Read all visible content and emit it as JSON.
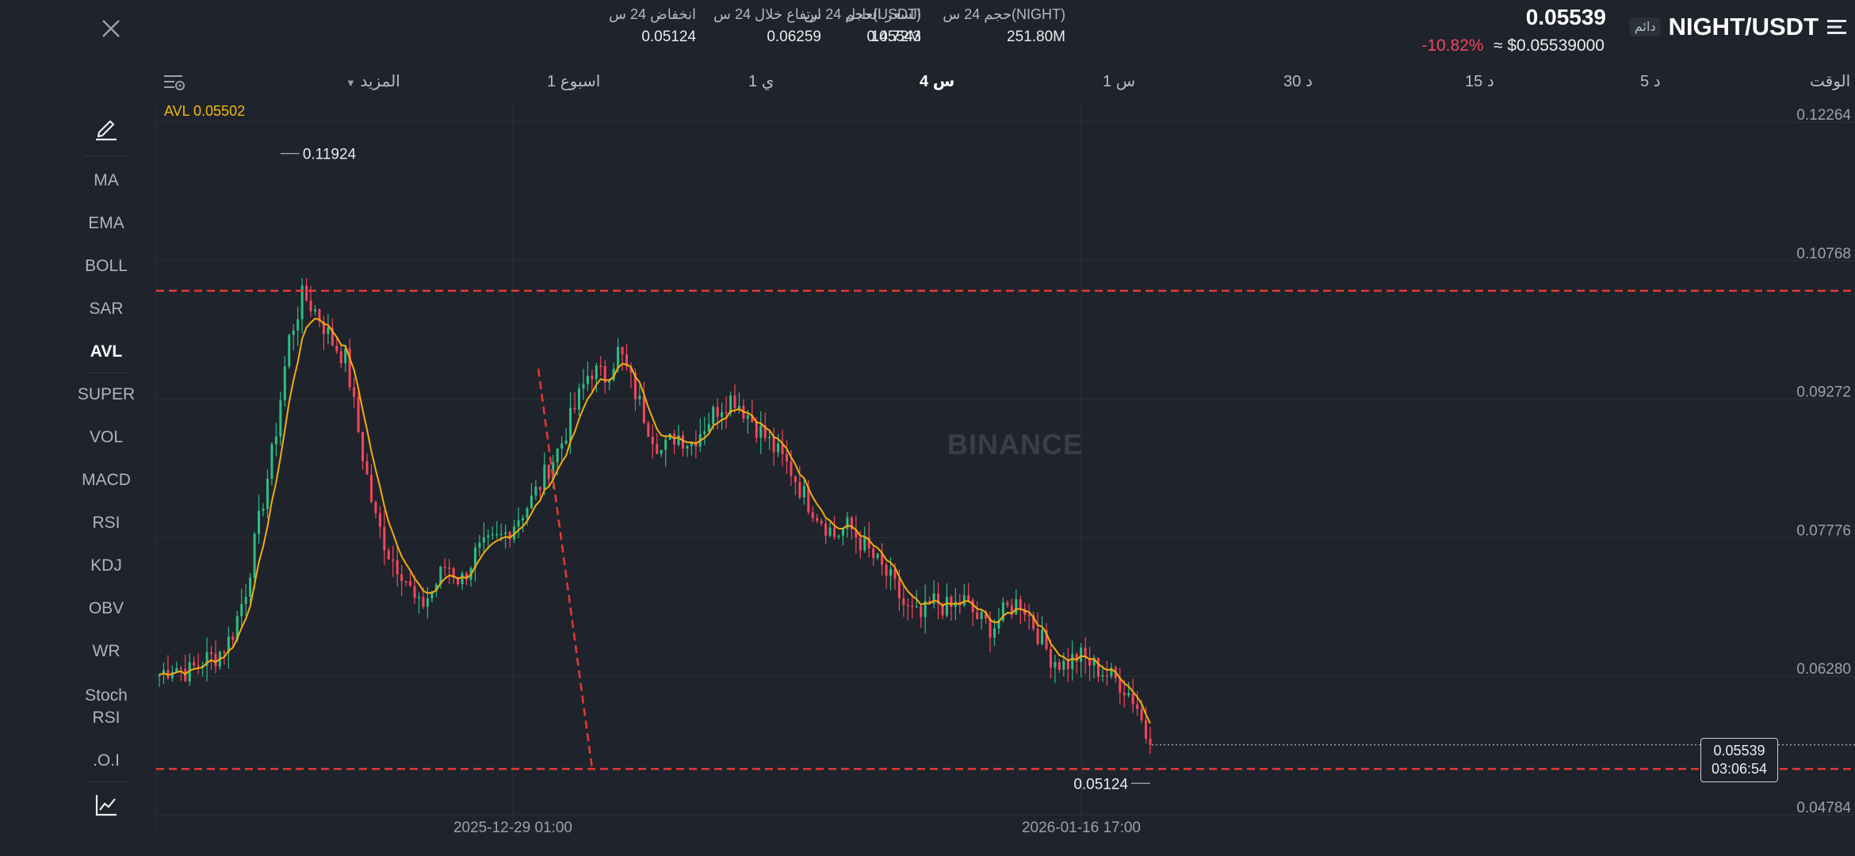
{
  "header": {
    "pair": "NIGHT/USDT",
    "contract_badge": "دائم",
    "last_price": "0.05539",
    "change_pct": "-10.82%",
    "usd_price": "≈ $0.05539000",
    "stats": [
      {
        "label": "السعر العادل",
        "value": "0.05543"
      },
      {
        "label": "ارتفاع خلال 24 س",
        "value": "0.06259"
      },
      {
        "label": "انخفاض 24 س",
        "value": "0.05124"
      },
      {
        "label": "حجم 24 س(NIGHT)",
        "value": "251.80M"
      },
      {
        "label": "حجم 24 س(USDT)",
        "value": "14.72M"
      }
    ]
  },
  "timeframes": {
    "time_label": "الوقت",
    "items": [
      "5 د",
      "15 د",
      "30 د",
      "1 س",
      "4 س",
      "1 ي",
      "1 اسبوع"
    ],
    "active": "4 س",
    "more": "المزيد"
  },
  "indicators": {
    "items": [
      "MA",
      "EMA",
      "BOLL",
      "SAR",
      "AVL",
      "SUPER",
      "VOL",
      "MACD",
      "RSI",
      "KDJ",
      "OBV",
      "WR",
      "Stoch RSI",
      ".O.I"
    ],
    "active": "AVL"
  },
  "overlay": {
    "avl_label": "AVL 0.05502",
    "current_price_tag": "0.05539",
    "countdown": "03:06:54",
    "high_marker": "0.11924",
    "low_marker": "0.05124",
    "watermark": "BINANCE"
  },
  "chart_data": {
    "type": "candlestick",
    "price_axis_labels": [
      "0.12264",
      "0.10768",
      "0.09272",
      "0.07776",
      "0.06280",
      "0.04784"
    ],
    "time_axis_labels": [
      "2025-12-29 01:00",
      "2026-01-16 17:00"
    ],
    "ylim": [
      0.04784,
      0.12264
    ],
    "annotations": {
      "max_high": 0.11924,
      "min_low": 0.05124,
      "current_price": 0.05539,
      "avl": 0.05502,
      "horizontal_lines": [
        0.10442,
        0.05279
      ]
    },
    "close_path": [
      0.063,
      0.064,
      0.0632,
      0.0645,
      0.065,
      0.067,
      0.072,
      0.08,
      0.088,
      0.099,
      0.104,
      0.102,
      0.099,
      0.097,
      0.088,
      0.08,
      0.076,
      0.074,
      0.07,
      0.072,
      0.075,
      0.073,
      0.076,
      0.077,
      0.078,
      0.08,
      0.082,
      0.085,
      0.088,
      0.092,
      0.096,
      0.095,
      0.098,
      0.094,
      0.09,
      0.087,
      0.089,
      0.088,
      0.09,
      0.092,
      0.093,
      0.091,
      0.089,
      0.087,
      0.085,
      0.082,
      0.08,
      0.078,
      0.079,
      0.077,
      0.075,
      0.073,
      0.07,
      0.069,
      0.071,
      0.07,
      0.071,
      0.069,
      0.068,
      0.07,
      0.071,
      0.068,
      0.065,
      0.064,
      0.065,
      0.064,
      0.063,
      0.062,
      0.06,
      0.055
    ]
  }
}
